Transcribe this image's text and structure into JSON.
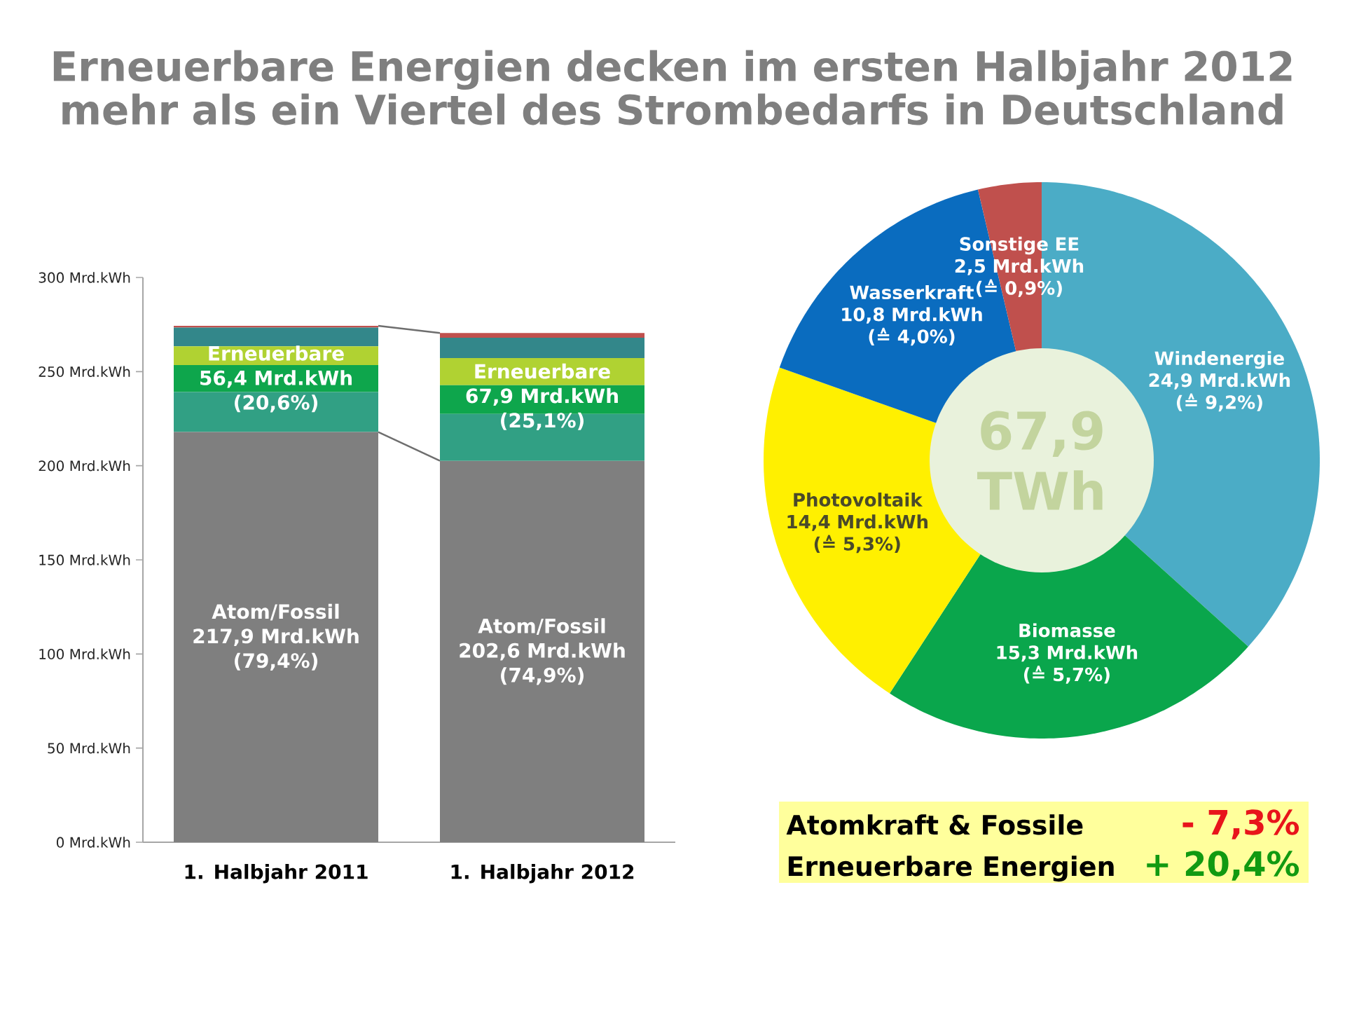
{
  "chart_data": [
    {
      "type": "bar",
      "title": "Erneuerbare Energien decken im ersten Halbjahr 2012 mehr als ein Viertel des Strombedarfs in Deutschland",
      "categories": [
        "1. Halbjahr 2011",
        "1. Halbjahr 2012"
      ],
      "stacked": true,
      "ylim": [
        0,
        300
      ],
      "yticks": [
        {
          "value": 0,
          "label": "0 Mrd.kWh"
        },
        {
          "value": 50,
          "label": "50 Mrd.kWh"
        },
        {
          "value": 100,
          "label": "100 Mrd.kWh"
        },
        {
          "value": 150,
          "label": "150 Mrd.kWh"
        },
        {
          "value": 200,
          "label": "200 Mrd.kWh"
        },
        {
          "value": 250,
          "label": "250 Mrd.kWh"
        },
        {
          "value": 300,
          "label": "300 Mrd.kWh"
        }
      ],
      "series": [
        {
          "name": "Atom/Fossil",
          "color": "#7f7f7f",
          "values": [
            217.9,
            202.6
          ],
          "value_labels": [
            "217,9 Mrd.kWh (79,4%)",
            "202,6 Mrd.kWh (74,9%)"
          ]
        },
        {
          "color": "#31a084",
          "values": [
            21.2,
            24.9
          ]
        },
        {
          "color": "#0ea64c",
          "values": [
            14.4,
            15.3
          ]
        },
        {
          "color": "#b0d232",
          "values": [
            9.9,
            14.4
          ]
        },
        {
          "color": "#33878a",
          "values": [
            10.0,
            10.8
          ]
        },
        {
          "color": "#c0504d",
          "values": [
            0.9,
            2.5
          ]
        }
      ],
      "annotations": [
        "Erneuerbare 56,4 Mrd.kWh (20,6%)",
        "Erneuerbare 67,9 Mrd.kWh (25,1%)"
      ]
    },
    {
      "type": "donut",
      "categories": [
        "Windenergie",
        "Biomasse",
        "Photovoltaik",
        "Wasserkraft",
        "Sonstige EE"
      ],
      "values": [
        24.9,
        15.3,
        14.4,
        10.8,
        2.5
      ],
      "colors": [
        "#4bacc6",
        "#0aa64c",
        "#fff000",
        "#0a6cbf",
        "#c0504d"
      ],
      "value_labels": [
        "24,9 Mrd.kWh (≙ 9,2%)",
        "15,3 Mrd.kWh (≙ 5,7%)",
        "14,4 Mrd.kWh (≙ 5,3%)",
        "10,8 Mrd.kWh (≙ 4,0%)",
        "2,5 Mrd.kWh (≙ 0,9%)"
      ],
      "annotations": [
        "67,9 TWh"
      ]
    },
    {
      "type": "other",
      "categories": [
        "Atomkraft & Fossile",
        "Erneuerbare Energien"
      ],
      "value_labels": [
        "- 7,3%",
        "+ 20,4%"
      ]
    }
  ]
}
